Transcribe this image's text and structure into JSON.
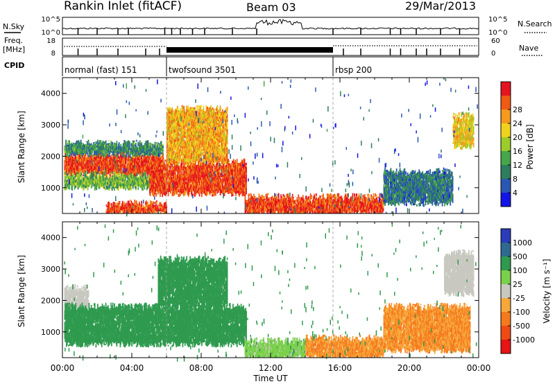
{
  "header": {
    "radar": "Rankin Inlet (fitACF)",
    "beam": "Beam 03",
    "date": "29/Mar/2013"
  },
  "top_panels": {
    "nsky_label": "N.Sky",
    "nsearch_label": "N.Search",
    "freq_label_line1": "Freq.",
    "freq_label_line2": "[MHz]",
    "nave_label": "Nave",
    "cpid_label": "CPID",
    "nsky_ticks": [
      "10^5",
      "10^0"
    ],
    "nsearch_ticks": [
      "10^5",
      "10^0"
    ],
    "freq_ticks": [
      "18",
      "8"
    ],
    "nave_ticks": [
      "60",
      "0"
    ]
  },
  "cpid_segments": [
    {
      "label": "normal (fast) 151",
      "start": 0.0,
      "end": 6.0
    },
    {
      "label": "twofsound 3501",
      "start": 6.0,
      "end": 15.6
    },
    {
      "label": "rbsp 200",
      "start": 15.6,
      "end": 24.0
    }
  ],
  "colorbars": {
    "power": {
      "title": "Power [dB]",
      "colors": [
        "#1414e6",
        "#2b57b4",
        "#2e7d5e",
        "#46a64a",
        "#9ccc2a",
        "#f0d21e",
        "#f59a1e",
        "#ef5a14",
        "#e6141e"
      ],
      "ticks": [
        "4",
        "8",
        "12",
        "16",
        "20",
        "24",
        "28"
      ]
    },
    "velocity": {
      "title": "Velocity [m s⁻¹]",
      "colors": [
        "#e61414",
        "#ef4a14",
        "#f57a1e",
        "#f7a83a",
        "#c8c8c0",
        "#7ad04a",
        "#2e9a4e",
        "#2e6a90",
        "#2a3cb8"
      ],
      "ticks": [
        "-1000",
        "-500",
        "-100",
        "-25",
        "25",
        "100",
        "500",
        "1000"
      ]
    }
  },
  "chart_data": [
    {
      "type": "heatmap",
      "name": "power",
      "ylabel": "Slant Range [km]",
      "ylim": [
        180,
        4500
      ],
      "yticks": [
        1000,
        2000,
        3000,
        4000
      ],
      "xlim": [
        0,
        24
      ],
      "xticks": [
        "00:00",
        "04:00",
        "08:00",
        "12:00",
        "16:00",
        "20:00",
        "00:00"
      ],
      "regions": [
        {
          "t0": 0.1,
          "t1": 5.8,
          "r0": 1400,
          "r1": 2050,
          "level": 28
        },
        {
          "t0": 0.1,
          "t1": 5.8,
          "r0": 1000,
          "r1": 1400,
          "level": 14
        },
        {
          "t0": 0.1,
          "t1": 5.8,
          "r0": 2050,
          "r1": 2400,
          "level": 10
        },
        {
          "t0": 2.5,
          "t1": 6.0,
          "r0": 180,
          "r1": 500,
          "level": 28
        },
        {
          "t0": 5.0,
          "t1": 10.6,
          "r0": 800,
          "r1": 1800,
          "level": 28
        },
        {
          "t0": 6.0,
          "t1": 9.5,
          "r0": 1800,
          "r1": 3500,
          "level": 22
        },
        {
          "t0": 10.5,
          "t1": 18.5,
          "r0": 180,
          "r1": 700,
          "level": 28
        },
        {
          "t0": 18.5,
          "t1": 22.5,
          "r0": 500,
          "r1": 1500,
          "level": 8
        },
        {
          "t0": 22.5,
          "t1": 23.7,
          "r0": 2300,
          "r1": 3300,
          "level": 20
        }
      ]
    },
    {
      "type": "heatmap",
      "name": "velocity",
      "ylabel": "Slant Range [km]",
      "ylim": [
        180,
        4500
      ],
      "yticks": [
        1000,
        2000,
        3000,
        4000
      ],
      "xlim": [
        0,
        24
      ],
      "xlabel": "Time UT",
      "xticks": [
        "00:00",
        "04:00",
        "08:00",
        "12:00",
        "16:00",
        "20:00",
        "00:00"
      ],
      "regions": [
        {
          "t0": 0.1,
          "t1": 1.5,
          "r0": 1800,
          "r1": 2400,
          "level": 0
        },
        {
          "t0": 0.1,
          "t1": 10.6,
          "r0": 600,
          "r1": 1800,
          "level": 300
        },
        {
          "t0": 5.5,
          "t1": 9.5,
          "r0": 1800,
          "r1": 3300,
          "level": 300
        },
        {
          "t0": 10.5,
          "t1": 14.0,
          "r0": 180,
          "r1": 700,
          "level": 60
        },
        {
          "t0": 14.0,
          "t1": 18.5,
          "r0": 180,
          "r1": 800,
          "level": -100
        },
        {
          "t0": 18.5,
          "t1": 23.5,
          "r0": 400,
          "r1": 1800,
          "level": -100
        },
        {
          "t0": 22.0,
          "t1": 23.7,
          "r0": 2200,
          "r1": 3500,
          "level": 0
        }
      ]
    }
  ]
}
